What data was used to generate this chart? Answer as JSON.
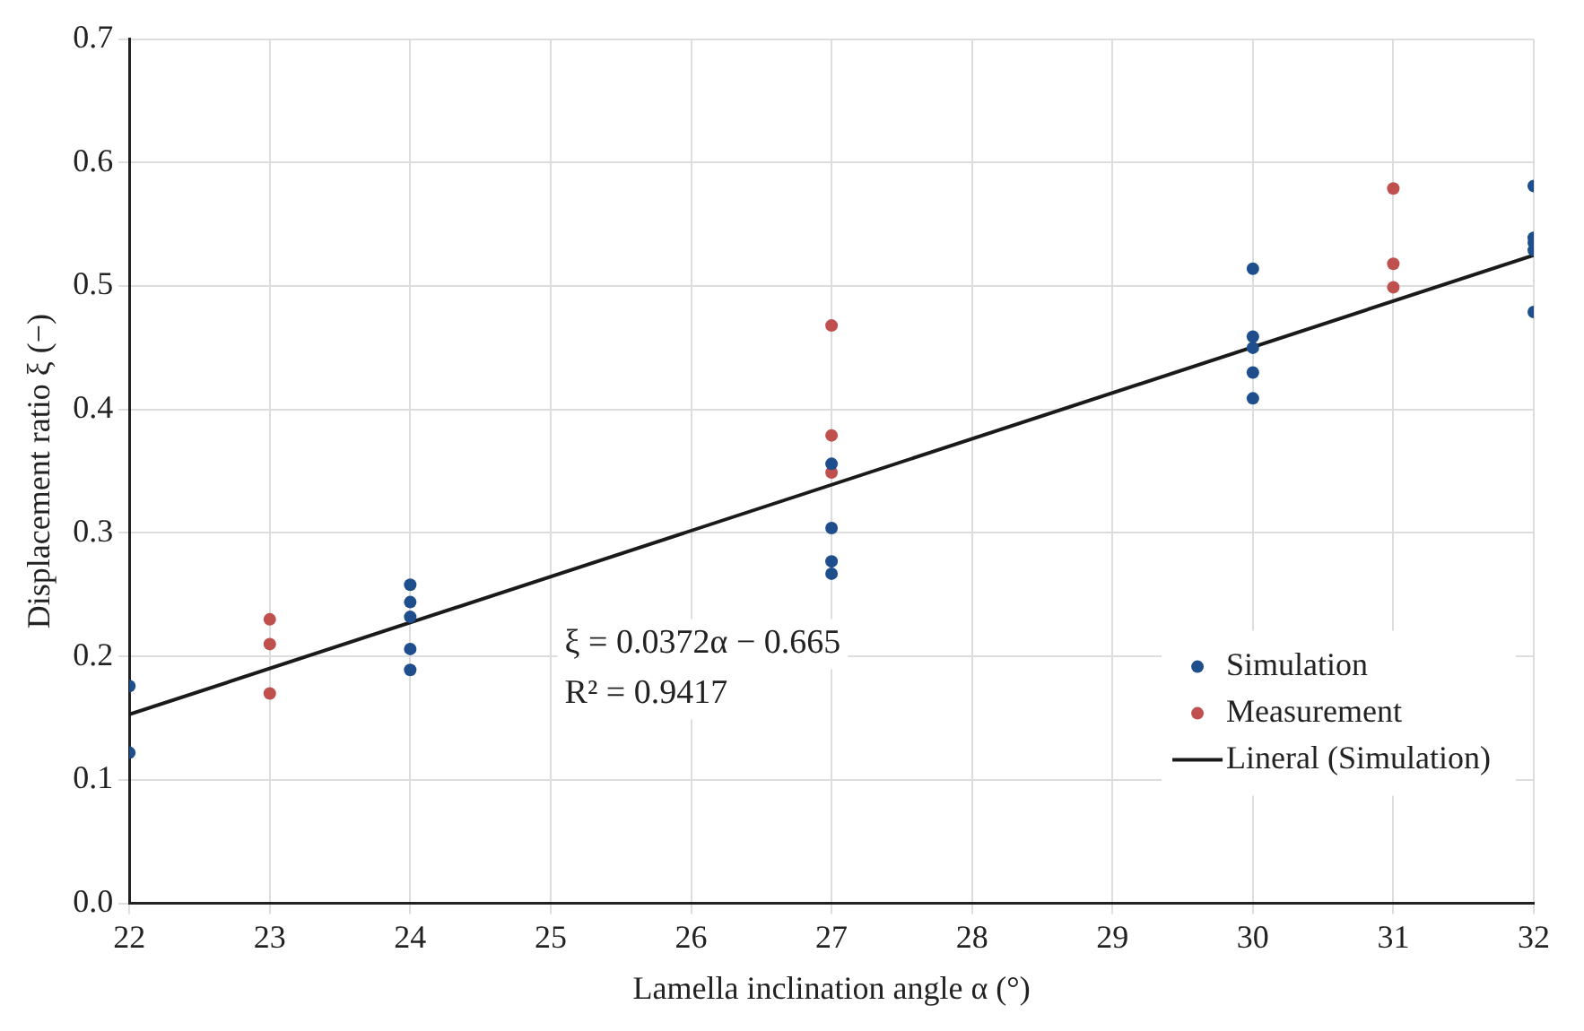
{
  "chart_data": {
    "type": "scatter",
    "xlabel": "Lamella inclination angle α (°)",
    "ylabel": "Displacement ratio ξ (−)",
    "xlim": [
      22,
      32
    ],
    "xticks": [
      22,
      23,
      24,
      25,
      26,
      27,
      28,
      29,
      30,
      31,
      32
    ],
    "ylim": [
      0,
      0.7
    ],
    "yticks": [
      {
        "value": 0,
        "label": "0.0"
      },
      0.1,
      0.2,
      0.3,
      0.4,
      0.5,
      0.6,
      0.7
    ],
    "grid": true,
    "legend": "bottom right",
    "marker": "circle",
    "annotations": [
      "ξ = 0.0372α − 0.665",
      "R² = 0.9417"
    ],
    "series": [
      {
        "name": "Simulation",
        "color": "#1f4e8c",
        "x": [
          22,
          22,
          24,
          24,
          24,
          24,
          24,
          27,
          27,
          27,
          27,
          30,
          30,
          30,
          30,
          30,
          32,
          32,
          32,
          32,
          32
        ],
        "values": [
          0.176,
          0.122,
          0.258,
          0.244,
          0.232,
          0.206,
          0.189,
          0.356,
          0.304,
          0.277,
          0.267,
          0.514,
          0.459,
          0.45,
          0.43,
          0.409,
          0.581,
          0.539,
          0.535,
          0.529,
          0.479
        ]
      },
      {
        "name": "Measurement",
        "color": "#c0504d",
        "x": [
          23,
          23,
          23,
          27,
          27,
          27,
          31,
          31,
          31
        ],
        "values": [
          0.23,
          0.21,
          0.17,
          0.468,
          0.379,
          0.349,
          0.579,
          0.518,
          0.499
        ]
      },
      {
        "name": "Lineral (Simulation)",
        "type": "line",
        "color": "#1a1a1a",
        "x": [
          22,
          32
        ],
        "values": [
          0.153,
          0.525
        ],
        "marker": "none",
        "line_style": "solid"
      }
    ]
  }
}
